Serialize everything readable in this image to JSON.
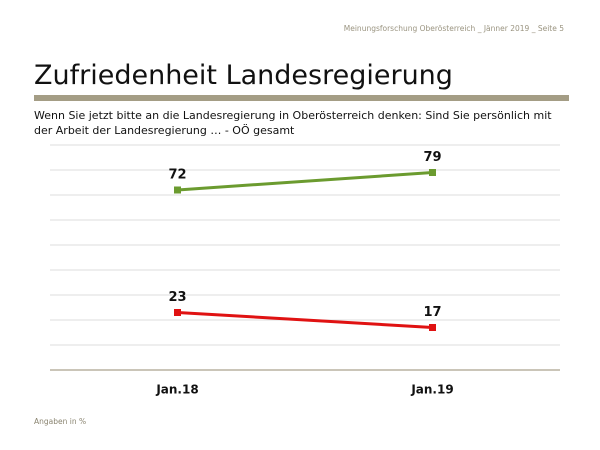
{
  "chart_data": {
    "type": "line",
    "header": "Meinungsforschung Oberösterreich _ Jänner 2019 _ Seite 5",
    "title": "Zufriedenheit Landesregierung",
    "subtitle": "Wenn Sie jetzt bitte an die Landesregierung in Oberösterreich denken: Sind Sie persönlich mit der Arbeit der Landesregierung … - OÖ gesamt",
    "note": "Angaben in %",
    "categories": [
      "Jan.18",
      "Jan.19"
    ],
    "series": [
      {
        "color": "#6b9b2f",
        "values": [
          72,
          79
        ]
      },
      {
        "color": "#e01212",
        "values": [
          23,
          17
        ]
      }
    ],
    "ylim": [
      0,
      90
    ],
    "yticks": [
      0,
      10,
      20,
      30,
      40,
      50,
      60,
      70,
      80,
      90
    ],
    "grid": true
  }
}
